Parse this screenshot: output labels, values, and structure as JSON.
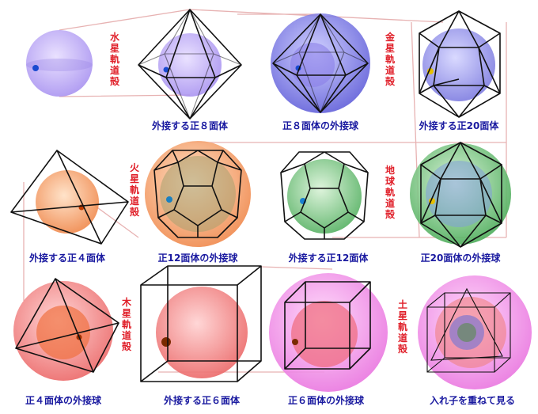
{
  "captions": {
    "r1c2": "外接する正８面体",
    "r1c3": "正８面体の外接球",
    "r1c4": "外接する正20面体",
    "r2c1": "外接する正４面体",
    "r2c2": "正12面体の外接球",
    "r2c3": "外接する正12面体",
    "r2c4": "正20面体の外接球",
    "r3c1": "正４面体の外接球",
    "r3c2": "外接する正６面体",
    "r3c3": "正６面体の外接球",
    "r3c4": "入れ子を重ねて見る"
  },
  "orbits": {
    "mercury": "水星軌道殻",
    "venus": "金星軌道殻",
    "mars": "火星軌道殻",
    "earth": "地球軌道殻",
    "jupiter": "木星軌道殻",
    "saturn": "土星軌道殻"
  },
  "colors": {
    "caption": "#1a1aa0",
    "orbit_label": "#e0202a",
    "mercury_sphere": "#b9a4f0",
    "venus_sphere": "#6f6ee0",
    "mars_sphere": "#f4a06a",
    "earth_sphere": "#6fc07a",
    "jupiter_sphere": "#f07a7a",
    "saturn_sphere": "#f28ee8",
    "connector": "#e7b2b2"
  }
}
